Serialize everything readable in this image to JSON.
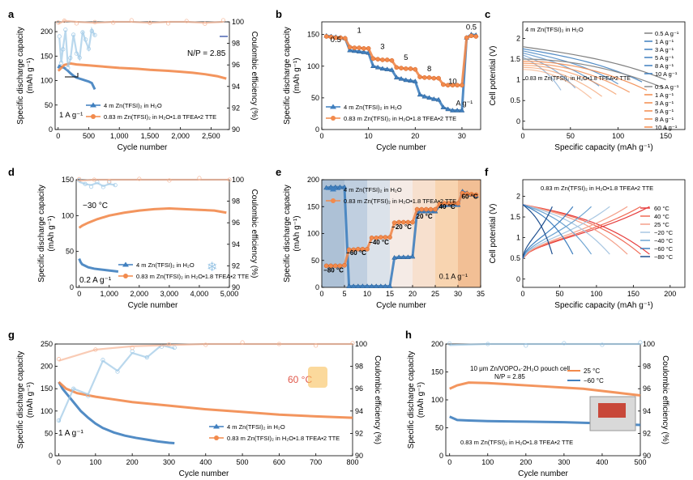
{
  "colors": {
    "blue": "#3f7fbf",
    "blue_light": "#9cc7e6",
    "orange": "#f28a4c",
    "orange_light": "#f6b596",
    "axis": "#000000"
  },
  "chart_data": [
    {
      "id": "a",
      "type": "line",
      "panel_label": "a",
      "xlabel": "Cycle number",
      "ylabel": "Specific discharge capacity\n(mAh g⁻¹)",
      "y2label": "Coulombic efficiency (%)",
      "xlim": [
        -50,
        2800
      ],
      "ylim": [
        0,
        220
      ],
      "y2lim": [
        90,
        100
      ],
      "xticks": [
        0,
        500,
        1000,
        1500,
        2000,
        2500
      ],
      "yticks": [
        0,
        50,
        100,
        150,
        200
      ],
      "y2ticks": [
        90,
        92,
        94,
        96,
        98,
        100
      ],
      "annotations": [
        "N/P = 2.85",
        "1 A g⁻¹"
      ],
      "legend": [
        "4 m Zn(TFSI)₂ in H₂O",
        "0.83 m Zn(TFSI)₂ in H₂O•1.8 TFEA•2 TTE"
      ],
      "series": [
        {
          "name": "4 m Zn(TFSI)₂ in H₂O",
          "axis": "left",
          "color": "blue",
          "x": [
            0,
            20,
            50,
            100,
            150,
            200,
            250,
            300,
            350,
            400,
            450,
            500,
            550,
            600
          ],
          "y": [
            125,
            130,
            128,
            126,
            121,
            115,
            110,
            106,
            104,
            102,
            100,
            98,
            95,
            82
          ]
        },
        {
          "name": "0.83 m Zn(TFSI)₂ in H₂O•1.8 TFEA•2 TTE",
          "axis": "left",
          "color": "orange",
          "x": [
            0,
            20,
            50,
            100,
            200,
            300,
            500,
            700,
            1000,
            1300,
            1500,
            1800,
            2000,
            2200,
            2400,
            2600,
            2750
          ],
          "y": [
            120,
            122,
            126,
            132,
            135,
            133,
            131,
            129,
            126,
            124,
            122,
            120,
            118,
            116,
            113,
            109,
            104
          ]
        },
        {
          "name": "CE blue",
          "axis": "right",
          "color": "blue_light",
          "x": [
            20,
            50,
            80,
            120,
            160,
            200,
            250,
            300,
            350,
            400,
            450,
            500,
            550,
            600
          ],
          "y": [
            98.5,
            96.2,
            97.6,
            99.2,
            95.8,
            96.5,
            98.8,
            97.2,
            96.6,
            99.1,
            98.2,
            97.5,
            99.3,
            98.7
          ]
        },
        {
          "name": "CE orange",
          "axis": "right",
          "color": "orange_light",
          "x": [
            0,
            100,
            300,
            600,
            900,
            1200,
            1500,
            1800,
            2100,
            2400,
            2700
          ],
          "y": [
            99.8,
            100.1,
            100.0,
            99.9,
            100.0,
            100.0,
            99.9,
            100.0,
            100.0,
            99.9,
            100.0
          ]
        }
      ]
    },
    {
      "id": "b",
      "type": "line",
      "panel_label": "b",
      "xlabel": "Cycle number",
      "ylabel": "Specific discharge capacity\n(mAh g⁻¹)",
      "xlim": [
        0,
        34
      ],
      "ylim": [
        0,
        170
      ],
      "xticks": [
        0,
        10,
        20,
        30
      ],
      "yticks": [
        0,
        50,
        100,
        150
      ],
      "rate_labels": [
        "0.5",
        "1",
        "3",
        "5",
        "8",
        "10",
        "0.5"
      ],
      "annotations": [
        "A g⁻¹"
      ],
      "legend": [
        "4 m Zn(TFSI)₂ in H₂O",
        "0.83 m Zn(TFSI)₂ in H₂O•1.8 TFEA•2 TTE"
      ],
      "series": [
        {
          "name": "4 m Zn(TFSI)₂ in H₂O",
          "color": "blue",
          "x": [
            1,
            2,
            3,
            4,
            5,
            6,
            7,
            8,
            9,
            10,
            11,
            12,
            13,
            14,
            15,
            16,
            17,
            18,
            19,
            20,
            21,
            22,
            23,
            24,
            25,
            26,
            27,
            28,
            29,
            30,
            31,
            32,
            33
          ],
          "y": [
            148,
            147,
            146,
            145,
            144,
            125,
            124,
            123,
            122,
            121,
            100,
            98,
            96,
            95,
            94,
            82,
            80,
            78,
            77,
            76,
            55,
            52,
            50,
            48,
            47,
            35,
            32,
            30,
            30,
            30,
            145,
            150,
            149
          ]
        },
        {
          "name": "0.83 m Zn(TFSI)₂ in H₂O•1.8 TFEA•2 TTE",
          "color": "orange",
          "x": [
            1,
            2,
            3,
            4,
            5,
            6,
            7,
            8,
            9,
            10,
            11,
            12,
            13,
            14,
            15,
            16,
            17,
            18,
            19,
            20,
            21,
            22,
            23,
            24,
            25,
            26,
            27,
            28,
            29,
            30,
            31,
            32,
            33
          ],
          "y": [
            147,
            146,
            145,
            145,
            144,
            130,
            129,
            129,
            128,
            128,
            112,
            111,
            110,
            110,
            109,
            98,
            97,
            96,
            96,
            95,
            83,
            82,
            82,
            81,
            81,
            71,
            70,
            70,
            70,
            70,
            145,
            148,
            147
          ]
        }
      ]
    },
    {
      "id": "c",
      "type": "line",
      "panel_label": "c",
      "xlabel": "Specific capacity (mAh g⁻¹)",
      "ylabel": "Cell potential (V)",
      "xlim": [
        0,
        170
      ],
      "ylim": [
        -0.2,
        2.4
      ],
      "xticks": [
        0,
        50,
        100,
        150
      ],
      "yticks": [
        0.0,
        0.5,
        1.0,
        1.5,
        2.0
      ],
      "labels_top": "4 m Zn(TFSI)₂ in H₂O",
      "labels_bottom": "0.83 m Zn(TFSI)₂ in H₂O•1.8 TFEA•2 TTE",
      "legend": [
        "0.5 A g⁻¹",
        "1 A g⁻¹",
        "3 A g⁻¹",
        "5 A g⁻¹",
        "8 A g⁻¹",
        "10 A g⁻¹"
      ],
      "series_top_caps": [
        150,
        125,
        100,
        80,
        55,
        40
      ],
      "series_bottom_caps": [
        148,
        130,
        112,
        98,
        83,
        72
      ]
    },
    {
      "id": "d",
      "type": "line",
      "panel_label": "d",
      "xlabel": "Cycle number",
      "ylabel": "Specific discharge capacity\n(mAh g⁻¹)",
      "y2label": "Coulombic efficiency (%)",
      "xlim": [
        -100,
        5000
      ],
      "ylim": [
        0,
        150
      ],
      "y2lim": [
        90,
        100
      ],
      "xticks": [
        0,
        1000,
        2000,
        3000,
        4000,
        5000
      ],
      "yticks": [
        0,
        50,
        100,
        150
      ],
      "y2ticks": [
        90,
        92,
        94,
        96,
        98,
        100
      ],
      "annotations": [
        "−30 °C",
        "0.2 A g⁻¹"
      ],
      "legend": [
        "4 m Zn(TFSI)₂ in H₂O",
        "0.83 m Zn(TFSI)₂ in H₂O•1.8 TFEA•2 TTE"
      ],
      "series": [
        {
          "name": "4 m Zn(TFSI)₂ in H₂O",
          "axis": "left",
          "color": "blue",
          "x": [
            0,
            50,
            100,
            200,
            300,
            500,
            700,
            900,
            1100,
            1300
          ],
          "y": [
            40,
            35,
            32,
            30,
            28,
            26,
            25,
            24,
            23,
            22
          ]
        },
        {
          "name": "0.83 m Zn(TFSI)₂ in H₂O•1.8 TFEA•2 TTE",
          "axis": "left",
          "color": "orange",
          "x": [
            0,
            100,
            300,
            600,
            1000,
            1500,
            2000,
            2500,
            3000,
            3500,
            4000,
            4500,
            4900
          ],
          "y": [
            83,
            86,
            90,
            95,
            100,
            104,
            107,
            109,
            110,
            109,
            108,
            107,
            104
          ]
        },
        {
          "name": "CE blue",
          "axis": "right",
          "color": "blue_light",
          "x": [
            0,
            200,
            400,
            600,
            800,
            1000,
            1200
          ],
          "y": [
            99.8,
            99.6,
            99.5,
            99.7,
            99.4,
            99.6,
            99.5
          ]
        },
        {
          "name": "CE orange",
          "axis": "right",
          "color": "orange_light",
          "x": [
            0,
            500,
            1000,
            2000,
            3000,
            4000,
            5000
          ],
          "y": [
            99.9,
            100.0,
            100.0,
            100.0,
            100.0,
            100.0,
            100.0
          ]
        }
      ]
    },
    {
      "id": "e",
      "type": "line",
      "panel_label": "e",
      "xlabel": "Cycle number",
      "ylabel": "Specific discharge capacity\n(mAh g⁻¹)",
      "xlim": [
        0,
        35
      ],
      "ylim": [
        0,
        200
      ],
      "xticks": [
        0,
        5,
        10,
        15,
        20,
        25,
        30,
        35
      ],
      "yticks": [
        0,
        50,
        100,
        150,
        200
      ],
      "temp_labels": [
        "−80 °C",
        "−60 °C",
        "−40 °C",
        "−20 °C",
        "20 °C",
        "40 °C",
        "60 °C"
      ],
      "annotations": [
        "0.1 A g⁻¹"
      ],
      "legend": [
        "4 m Zn(TFSI)₂ in H₂O",
        "0.83 m Zn(TFSI)₂ in H₂O•1.8 TFEA•2 TTE"
      ],
      "series": [
        {
          "name": "4 m Zn(TFSI)₂ in H₂O",
          "color": "blue",
          "x": [
            1,
            2,
            3,
            4,
            5,
            6,
            7,
            8,
            9,
            10,
            11,
            12,
            13,
            14,
            15,
            16,
            17,
            18,
            19,
            20,
            21,
            22,
            23,
            24,
            25,
            26,
            27,
            28,
            29,
            30,
            31,
            32,
            33,
            34
          ],
          "y": [
            185,
            186,
            186,
            186,
            186,
            2,
            2,
            2,
            2,
            2,
            2,
            2,
            2,
            2,
            2,
            55,
            56,
            56,
            56,
            57,
            140,
            141,
            141,
            141,
            141,
            152,
            152,
            153,
            153,
            153,
            178,
            175,
            172,
            170
          ]
        },
        {
          "name": "0.83 m Zn(TFSI)₂ in H₂O•1.8 TFEA•2 TTE",
          "color": "orange",
          "x": [
            1,
            2,
            3,
            4,
            5,
            6,
            7,
            8,
            9,
            10,
            11,
            12,
            13,
            14,
            15,
            16,
            17,
            18,
            19,
            20,
            21,
            22,
            23,
            24,
            25,
            26,
            27,
            28,
            29,
            30,
            31,
            32,
            33,
            34
          ],
          "y": [
            40,
            40,
            40,
            40,
            41,
            70,
            70,
            71,
            71,
            71,
            92,
            92,
            93,
            93,
            93,
            120,
            121,
            121,
            121,
            121,
            145,
            145,
            145,
            145,
            145,
            155,
            156,
            156,
            156,
            156,
            175,
            174,
            173,
            172
          ]
        }
      ]
    },
    {
      "id": "f",
      "type": "line",
      "panel_label": "f",
      "xlabel": "Specific capacity (mAh g⁻¹)",
      "ylabel": "Cell potential (V)",
      "xlim": [
        0,
        220
      ],
      "ylim": [
        -0.2,
        2.4
      ],
      "xticks": [
        0,
        50,
        100,
        150,
        200
      ],
      "yticks": [
        0.0,
        0.5,
        1.0,
        1.5,
        2.0
      ],
      "label_top": "0.83 m Zn(TFSI)₂ in H₂O•1.8 TFEA•2 TTE",
      "legend": [
        "60 °C",
        "40 °C",
        "25 °C",
        "−20 °C",
        "−40 °C",
        "−60 °C",
        "−80 °C"
      ],
      "caps": [
        172,
        160,
        142,
        118,
        93,
        68,
        40
      ]
    },
    {
      "id": "g",
      "type": "line",
      "panel_label": "g",
      "xlabel": "Cycle number",
      "ylabel": "Specific discharge capacity\n(mAh g⁻¹)",
      "y2label": "Coulombic efficiency (%)",
      "xlim": [
        -10,
        800
      ],
      "ylim": [
        0,
        250
      ],
      "y2lim": [
        90,
        100
      ],
      "xticks": [
        0,
        100,
        200,
        300,
        400,
        500,
        600,
        700,
        800
      ],
      "yticks": [
        0,
        50,
        100,
        150,
        200,
        250
      ],
      "y2ticks": [
        90,
        92,
        94,
        96,
        98,
        100
      ],
      "annotations": [
        "60 °C",
        "1 A g⁻¹"
      ],
      "legend": [
        "4 m Zn(TFSI)₂ in H₂O",
        "0.83 m Zn(TFSI)₂ in H₂O•1.8 TFEA•2 TTE"
      ],
      "series": [
        {
          "name": "4 m Zn(TFSI)₂ in H₂O",
          "axis": "left",
          "color": "blue",
          "x": [
            0,
            10,
            20,
            40,
            60,
            80,
            100,
            120,
            150,
            180,
            210,
            240,
            270,
            300,
            315
          ],
          "y": [
            165,
            150,
            140,
            120,
            100,
            85,
            72,
            62,
            52,
            45,
            40,
            36,
            32,
            29,
            28
          ]
        },
        {
          "name": "0.83 m Zn(TFSI)₂ in H₂O•1.8 TFEA•2 TTE",
          "axis": "left",
          "color": "orange",
          "x": [
            0,
            20,
            50,
            100,
            150,
            200,
            300,
            400,
            500,
            600,
            700,
            800
          ],
          "y": [
            165,
            150,
            140,
            132,
            126,
            120,
            112,
            104,
            98,
            92,
            88,
            85
          ]
        },
        {
          "name": "CE blue",
          "axis": "right",
          "color": "blue_light",
          "x": [
            0,
            40,
            80,
            120,
            160,
            200,
            240,
            280,
            315
          ],
          "y": [
            93,
            96,
            95.5,
            98.5,
            97.6,
            99.2,
            98.8,
            99.9,
            99.6
          ]
        },
        {
          "name": "CE orange",
          "axis": "right",
          "color": "orange_light",
          "x": [
            0,
            100,
            200,
            300,
            400,
            500,
            600,
            700,
            800
          ],
          "y": [
            98.5,
            99.5,
            99.8,
            99.9,
            100.0,
            100.0,
            100.0,
            100.0,
            100.0
          ]
        }
      ]
    },
    {
      "id": "h",
      "type": "line",
      "panel_label": "h",
      "xlabel": "Cycle number",
      "ylabel": "Specific discharge capacity\n(mAh g⁻¹)",
      "y2label": "Coulombic efficiency (%)",
      "xlim": [
        -10,
        500
      ],
      "ylim": [
        0,
        200
      ],
      "y2lim": [
        90,
        100
      ],
      "xticks": [
        0,
        100,
        200,
        300,
        400,
        500
      ],
      "yticks": [
        0,
        50,
        100,
        150,
        200
      ],
      "y2ticks": [
        90,
        92,
        94,
        96,
        98,
        100
      ],
      "annotations": [
        "10 μm Zn/VOPO₄·2H₂O pouch cell",
        "N/P = 2.85",
        "0.83 m Zn(TFSI)₂ in H₂O•1.8 TFEA•2 TTE"
      ],
      "legend": [
        "25 °C",
        "−60 °C"
      ],
      "series": [
        {
          "name": "25 °C",
          "axis": "left",
          "color": "orange",
          "x": [
            0,
            20,
            50,
            100,
            150,
            200,
            250,
            300,
            350,
            400,
            450,
            500
          ],
          "y": [
            120,
            126,
            131,
            130,
            128,
            126,
            124,
            122,
            120,
            116,
            112,
            108
          ]
        },
        {
          "name": "−60 °C",
          "axis": "left",
          "color": "blue",
          "x": [
            0,
            20,
            50,
            100,
            200,
            300,
            400,
            500
          ],
          "y": [
            70,
            64,
            63,
            62,
            61,
            60,
            58,
            55
          ]
        },
        {
          "name": "CE",
          "axis": "right",
          "color": "blue_light",
          "x": [
            0,
            100,
            200,
            300,
            400,
            500
          ],
          "y": [
            99.9,
            100.0,
            100.0,
            100.0,
            100.0,
            100.0
          ]
        }
      ]
    }
  ]
}
